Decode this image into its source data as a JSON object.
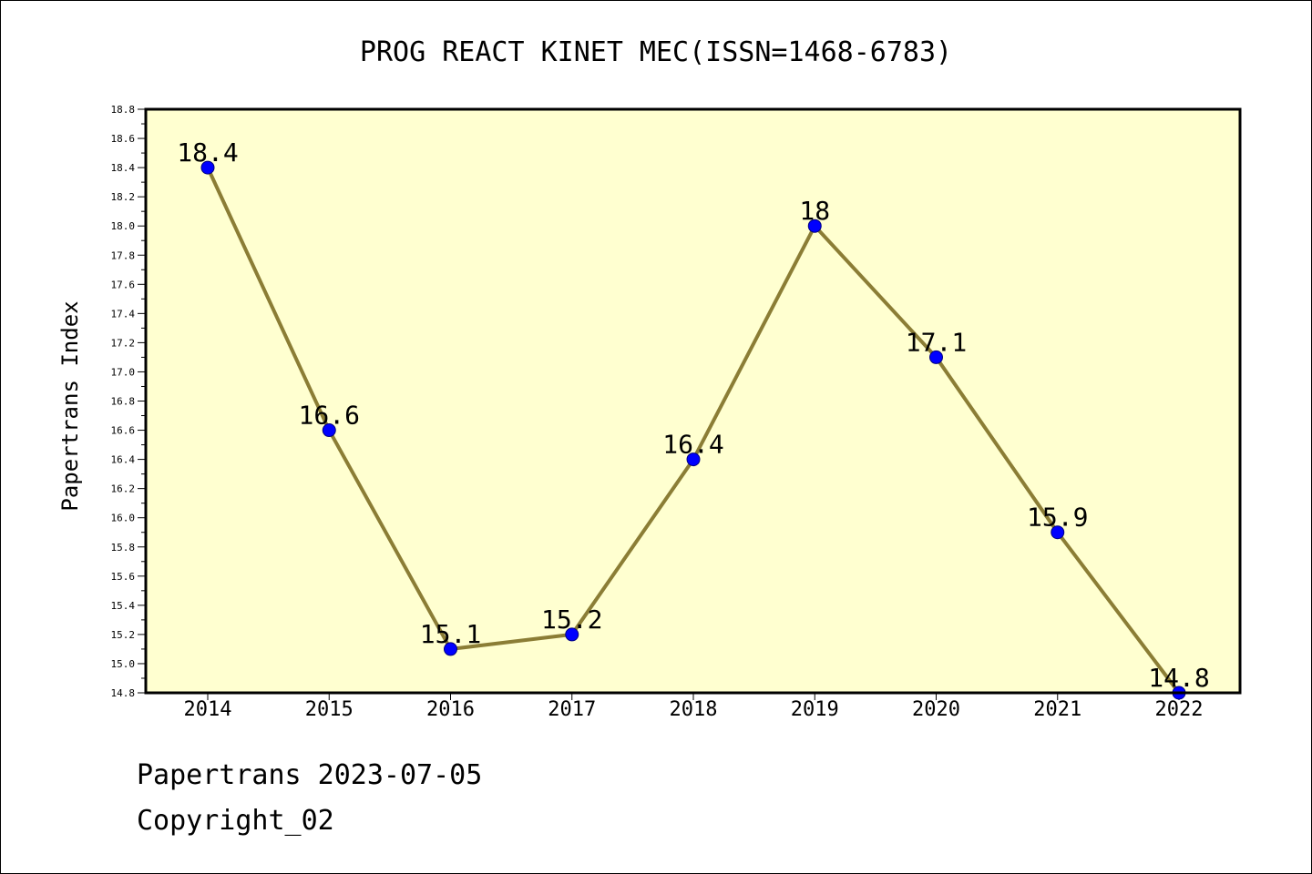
{
  "chart_data": {
    "type": "line",
    "title": "PROG REACT KINET MEC(ISSN=1468-6783)",
    "xlabel": "",
    "ylabel": "Papertrans Index",
    "categories": [
      "2014",
      "2015",
      "2016",
      "2017",
      "2018",
      "2019",
      "2020",
      "2021",
      "2022"
    ],
    "series": [
      {
        "values": [
          18.4,
          16.6,
          15.1,
          15.2,
          16.4,
          18.0,
          17.1,
          15.9,
          14.8
        ],
        "point_labels": [
          "18.4",
          "16.6",
          "15.1",
          "15.2",
          "16.4",
          "18",
          "17.1",
          "15.9",
          "14.8"
        ]
      }
    ],
    "ylim": [
      14.8,
      18.8
    ],
    "y_ticks": [
      "14.8",
      "15.0",
      "15.2",
      "15.4",
      "15.6",
      "15.8",
      "16.0",
      "16.2",
      "16.4",
      "16.6",
      "16.8",
      "17.0",
      "17.2",
      "17.4",
      "17.6",
      "17.8",
      "18.0",
      "18.2",
      "18.4",
      "18.6",
      "18.8"
    ],
    "grid": false,
    "legend": "none"
  },
  "colors": {
    "plot_background": "#ffffd0",
    "line": "#8b7d35",
    "marker": "#0000ff",
    "axis": "#000000"
  },
  "footer": {
    "line1": "Papertrans 2023-07-05",
    "line2": "Copyright_02"
  }
}
